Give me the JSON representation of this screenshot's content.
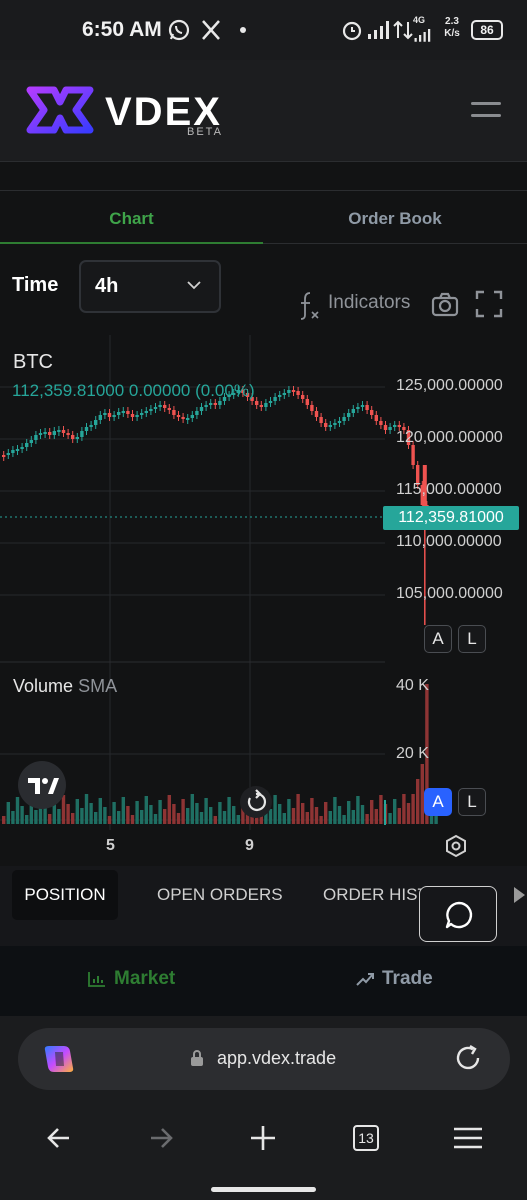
{
  "status_bar": {
    "time": "6:50 AM",
    "network_type": "4G",
    "net_speed": "2.3",
    "net_speed_unit": "K/s",
    "battery": "86",
    "icons": [
      "whatsapp-icon",
      "x-icon",
      "dot-icon",
      "alarm-icon",
      "signal-icon",
      "signal-icon-2",
      "data-arrows-icon",
      "battery-icon"
    ]
  },
  "header": {
    "brand": "VDEX",
    "beta": "BETA",
    "menu_icon": "hamburger-icon"
  },
  "tabs": [
    {
      "label": "Chart",
      "active": true
    },
    {
      "label": "Order Book",
      "active": false
    }
  ],
  "chart_toolbar": {
    "time_label": "Time",
    "interval": "4h",
    "indicators": "Indicators"
  },
  "chart": {
    "symbol": "BTC",
    "ohlc": "112,359.81000  0.00000 (0.00%)",
    "current_price": "112,359.81000",
    "price_ticks": [
      "125,000.00000",
      "120,000.00000",
      "115,000.00000",
      "110,000.00000",
      "105,000.00000"
    ],
    "volume_label": "Volume",
    "volume_sma": "SMA",
    "volume_ticks": [
      "40 K",
      "20 K"
    ],
    "x_ticks": [
      "5",
      "9"
    ],
    "scale_buttons": {
      "price_auto": "A",
      "price_log": "L",
      "volume_auto": "A",
      "volume_log": "L"
    },
    "colors": {
      "up": "#26a69a",
      "down": "#ef5350",
      "accent": "#2962ff"
    }
  },
  "orders": {
    "tabs": [
      "POSITION",
      "OPEN ORDERS",
      "ORDER HISTORY"
    ]
  },
  "app_nav": {
    "market": "Market",
    "trade": "Trade"
  },
  "browser": {
    "url": "app.vdex.trade",
    "tab_count": "13"
  }
}
